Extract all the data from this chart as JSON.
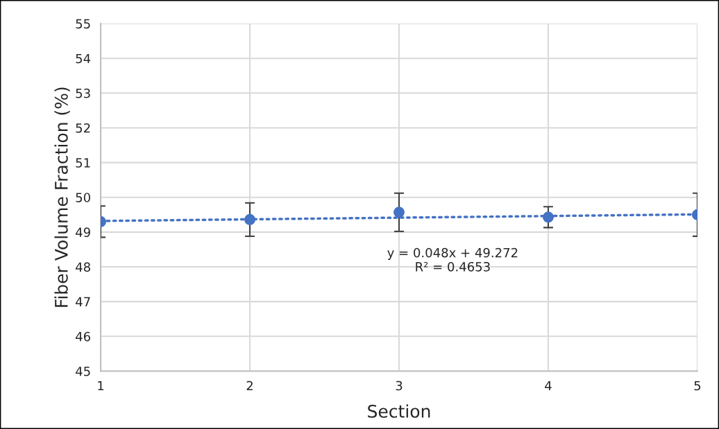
{
  "chart_data": {
    "type": "scatter",
    "xlabel": "Section",
    "ylabel": "Fiber Volume Fraction (%)",
    "x": [
      1,
      2,
      3,
      4,
      5
    ],
    "series": [
      {
        "color": "#4472c4",
        "marker": "circle",
        "values": [
          49.3,
          49.36,
          49.57,
          49.43,
          49.5
        ],
        "errors": [
          0.45,
          0.48,
          0.55,
          0.3,
          0.62
        ]
      },
      {
        "type": "line",
        "color": "#4472c4",
        "line_style": "dotted",
        "marker": "none",
        "x": [
          1,
          5
        ],
        "values": [
          49.32,
          49.51
        ]
      }
    ],
    "annotations": [
      "y = 0.048x + 49.272\nR² = 0.4653"
    ],
    "xlim": [
      1,
      5
    ],
    "xticks": [
      1,
      2,
      3,
      4,
      5
    ],
    "ylim": [
      45,
      55
    ],
    "yticks": [
      45,
      46,
      47,
      48,
      49,
      50,
      51,
      52,
      53,
      54,
      55
    ],
    "grid": true
  }
}
